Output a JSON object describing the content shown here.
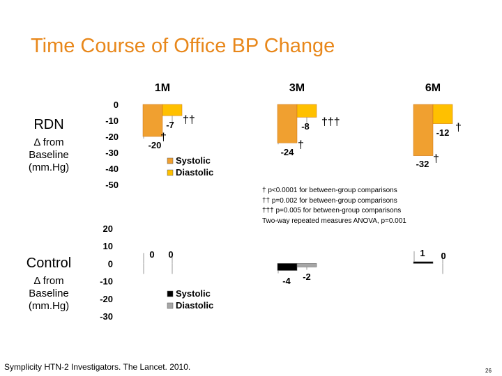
{
  "title": "Time Course of Office BP Change",
  "citation": "Symplicity HTN-2 Investigators.  The Lancet. 2010.",
  "page_number": "26",
  "row_labels": {
    "rdn": {
      "name": "RDN",
      "sub1": "Δ from",
      "sub2": "Baseline",
      "sub3": "(mm.Hg)"
    },
    "control": {
      "name": "Control",
      "sub1": "Δ from",
      "sub2": "Baseline",
      "sub3": "(mm.Hg)"
    }
  },
  "footnotes": [
    "† p<0.0001 for between-group comparisons",
    "†† p=0.002 for between-group comparisons",
    "††† p=0.005 for between-group comparisons",
    "Two-way repeated measures ANOVA, p=0.001"
  ],
  "colors": {
    "title": "#E8871A",
    "rdn_systolic": "#F0A030",
    "rdn_diastolic": "#FFC000",
    "control_systolic": "#000000",
    "control_diastolic": "#A6A6A6"
  },
  "chart_data": [
    {
      "type": "bar",
      "categories": [
        "1M",
        "3M",
        "6M"
      ],
      "ylim": [
        -50,
        0
      ],
      "yticks": [
        "0",
        "-10",
        "-20",
        "-30",
        "-40",
        "-50"
      ],
      "legend": [
        "Systolic",
        "Diastolic"
      ],
      "series": [
        {
          "name": "Systolic",
          "values": [
            -20,
            -24,
            -32
          ],
          "labels": [
            "-20",
            "-24",
            "-32"
          ],
          "marks": [
            "†",
            "†",
            "†"
          ]
        },
        {
          "name": "Diastolic",
          "values": [
            -7,
            -8,
            -12
          ],
          "labels": [
            "-7",
            "-8",
            "-12"
          ],
          "marks": [
            "††",
            "†††",
            "†"
          ]
        }
      ]
    },
    {
      "type": "bar",
      "categories": [
        "1M",
        "3M",
        "6M"
      ],
      "ylim": [
        -30,
        20
      ],
      "yticks": [
        "20",
        "10",
        "0",
        "-10",
        "-20",
        "-30"
      ],
      "legend": [
        "Systolic",
        "Diastolic"
      ],
      "series": [
        {
          "name": "Systolic",
          "values": [
            0,
            -4,
            1
          ],
          "labels": [
            "0",
            "-4",
            "1"
          ]
        },
        {
          "name": "Diastolic",
          "values": [
            0,
            -2,
            0
          ],
          "labels": [
            "0",
            "-2",
            "0"
          ]
        }
      ]
    }
  ]
}
